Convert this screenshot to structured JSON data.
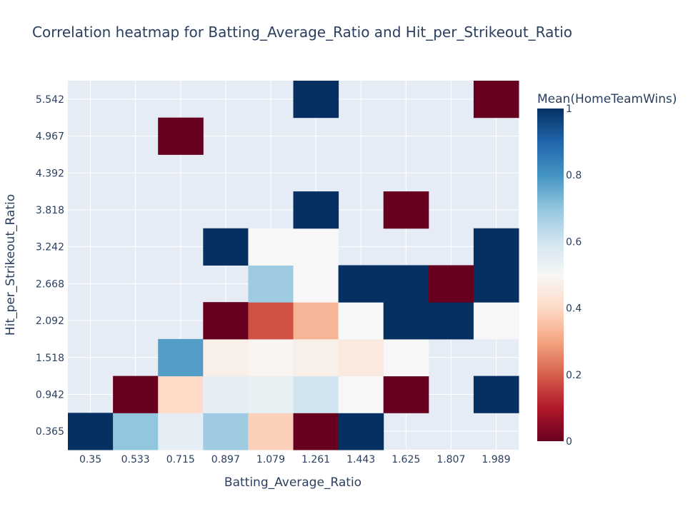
{
  "chart_data": {
    "type": "heatmap",
    "title": "Correlation heatmap for Batting_Average_Ratio and Hit_per_Strikeout_Ratio",
    "xlabel": "Batting_Average_Ratio",
    "ylabel": "Hit_per_Strikeout_Ratio",
    "x_categories": [
      "0.35",
      "0.533",
      "0.715",
      "0.897",
      "1.079",
      "1.261",
      "1.443",
      "1.625",
      "1.807",
      "1.989"
    ],
    "y_categories": [
      "0.365",
      "0.942",
      "1.518",
      "2.092",
      "2.668",
      "3.242",
      "3.818",
      "4.392",
      "4.967",
      "5.542"
    ],
    "z": [
      [
        1,
        0.7,
        0.55,
        0.68,
        0.38,
        0,
        1,
        null,
        null,
        null
      ],
      [
        null,
        0,
        0.4,
        0.55,
        0.54,
        0.6,
        0.5,
        0,
        null,
        1
      ],
      [
        null,
        null,
        0.78,
        0.47,
        0.49,
        0.47,
        0.45,
        0.5,
        null,
        null
      ],
      [
        null,
        null,
        null,
        0,
        0.18,
        0.33,
        0.5,
        1,
        1,
        0.5
      ],
      [
        null,
        null,
        null,
        null,
        0.68,
        0.5,
        1,
        1,
        0,
        1
      ],
      [
        null,
        null,
        null,
        1,
        0.5,
        0.5,
        null,
        null,
        null,
        1
      ],
      [
        null,
        null,
        null,
        null,
        null,
        1,
        null,
        0,
        null,
        null
      ],
      [
        null,
        null,
        null,
        null,
        null,
        null,
        null,
        null,
        null,
        null
      ],
      [
        null,
        null,
        0,
        null,
        null,
        null,
        null,
        null,
        null,
        null
      ],
      [
        null,
        null,
        null,
        null,
        null,
        1,
        null,
        null,
        null,
        0
      ]
    ],
    "colorbar": {
      "title": "Mean(HomeTeamWins)",
      "range": [
        0,
        1
      ],
      "ticks": [
        "0",
        "0.2",
        "0.4",
        "0.6",
        "0.8",
        "1"
      ],
      "colorscale": [
        [
          0,
          "#67001f"
        ],
        [
          0.1,
          "#b2182b"
        ],
        [
          0.2,
          "#d6604d"
        ],
        [
          0.3,
          "#f4a582"
        ],
        [
          0.4,
          "#fddbc7"
        ],
        [
          0.5,
          "#f7f7f7"
        ],
        [
          0.6,
          "#d1e5f0"
        ],
        [
          0.7,
          "#92c5de"
        ],
        [
          0.8,
          "#4393c3"
        ],
        [
          0.9,
          "#2166ac"
        ],
        [
          1,
          "#053061"
        ]
      ]
    },
    "plot_background": "#e5ecf6",
    "grid": true
  }
}
